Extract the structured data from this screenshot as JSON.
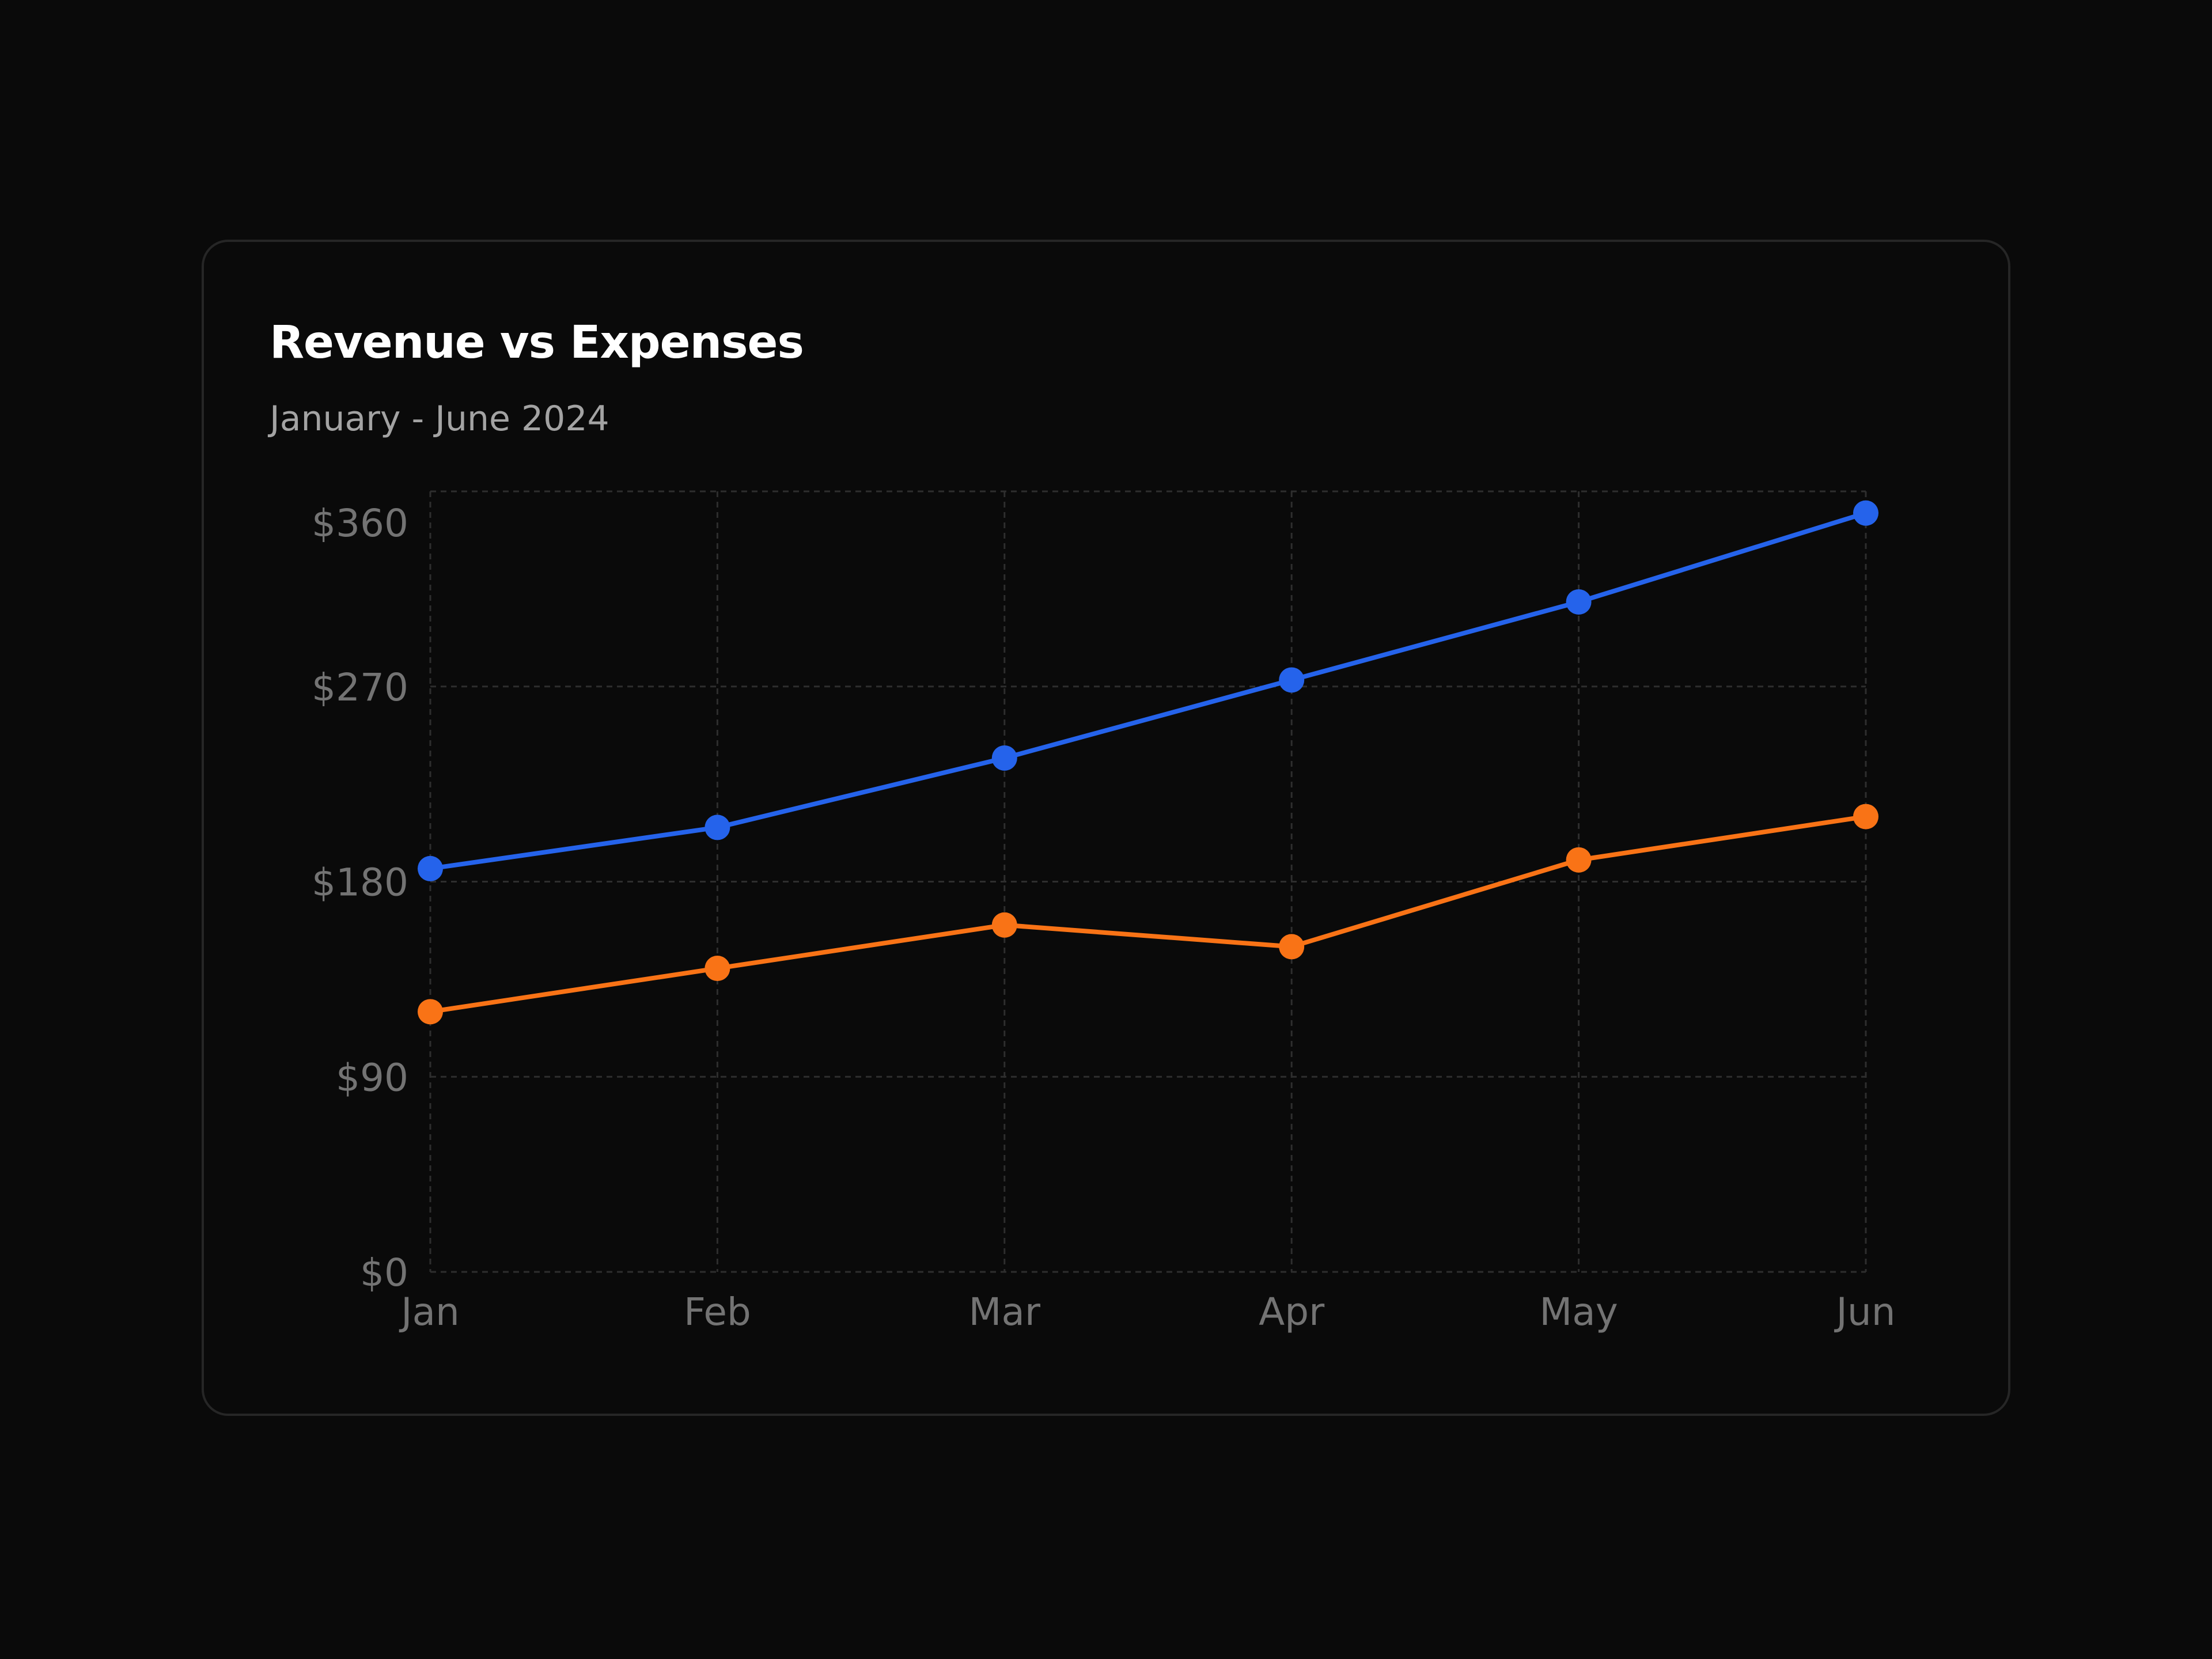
{
  "chart_data": {
    "type": "line",
    "title": "Revenue vs Expenses",
    "subtitle": "January - June 2024",
    "categories": [
      "Jan",
      "Feb",
      "Mar",
      "Apr",
      "May",
      "Jun"
    ],
    "series": [
      {
        "color": "#2563eb",
        "values": [
          186,
          205,
          237,
          273,
          309,
          350
        ]
      },
      {
        "color": "#f97316",
        "values": [
          120,
          140,
          160,
          150,
          190,
          210
        ]
      }
    ],
    "yticks": [
      0,
      90,
      180,
      270,
      360
    ],
    "ytick_labels": [
      "$0",
      "$90",
      "$180",
      "$270",
      "$360"
    ],
    "ylim": [
      0,
      360
    ],
    "grid": true,
    "legend": "none"
  }
}
